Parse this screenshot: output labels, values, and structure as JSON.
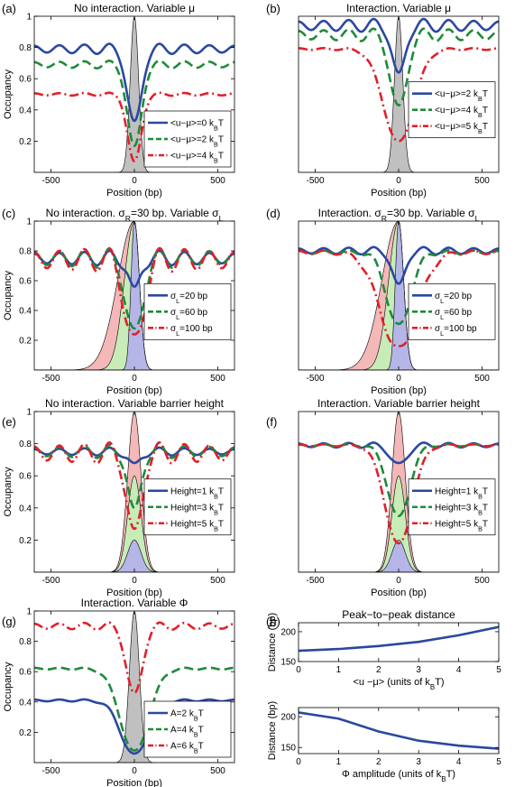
{
  "chart_data": [
    {
      "panel": "(a)",
      "type": "line",
      "title": "No interaction. Variable μ",
      "xlabel": "Position (bp)",
      "ylabel": "Occupancy",
      "xlim": [
        -600,
        600
      ],
      "ylim": [
        0,
        1
      ],
      "xticks": [
        "-500",
        "0",
        "500"
      ],
      "yticks": [
        "0.2",
        "0.4",
        "0.6",
        "0.8",
        "1"
      ],
      "legend_loc": "lower-right",
      "barrier": {
        "shape": "gaussian",
        "height": 1,
        "width": 25,
        "color": "#c0c0c0"
      },
      "series": [
        {
          "name": "<u−μ>=0 kBT",
          "label_parts": [
            "<u−μ>=0 k",
            "B",
            "T"
          ],
          "color": "#2b48a0",
          "dash": "",
          "baseline": 0.79,
          "amp": 0.04,
          "period": 150,
          "depth": 0.5,
          "dipw": 40
        },
        {
          "name": "<u−μ>=2 kBT",
          "label_parts": [
            "<u−μ>=2 k",
            "B",
            "T"
          ],
          "color": "#1f8a3a",
          "dash": "10,5",
          "baseline": 0.69,
          "amp": 0.03,
          "period": 150,
          "depth": 0.55,
          "dipw": 40
        },
        {
          "name": "<u−μ>=4 kBT",
          "label_parts": [
            "<u−μ>=4 k",
            "B",
            "T"
          ],
          "color": "#e0202a",
          "dash": "10,4,2,4",
          "baseline": 0.5,
          "amp": 0.012,
          "period": 150,
          "depth": 0.44,
          "dipw": 40
        }
      ]
    },
    {
      "panel": "(b)",
      "type": "line",
      "title": "Interaction. Variable μ",
      "xlabel": "Position (bp)",
      "ylabel": "",
      "xlim": [
        -600,
        600
      ],
      "ylim": [
        0,
        1
      ],
      "xticks": [
        "-500",
        "0",
        "500"
      ],
      "yticks": [],
      "legend_loc": "right",
      "barrier": {
        "shape": "gaussian",
        "height": 1,
        "width": 25,
        "color": "#c0c0c0"
      },
      "series": [
        {
          "name": "<u−μ>=2 kBT",
          "label_parts": [
            "<u−μ>=2 k",
            "B",
            "T"
          ],
          "color": "#2b48a0",
          "dash": "",
          "baseline": 0.94,
          "amp": 0.05,
          "period": 150,
          "depth": 0.35,
          "dipw": 35
        },
        {
          "name": "<u−μ>=4 kBT",
          "label_parts": [
            "<u−μ>=4 k",
            "B",
            "T"
          ],
          "color": "#1f8a3a",
          "dash": "10,5",
          "baseline": 0.88,
          "amp": 0.05,
          "period": 150,
          "depth": 0.5,
          "dipw": 45
        },
        {
          "name": "<u−μ>=5 kBT",
          "label_parts": [
            "<u−μ>=5 k",
            "B",
            "T"
          ],
          "color": "#e0202a",
          "dash": "10,4,2,4",
          "baseline": 0.79,
          "amp": 0.01,
          "period": 150,
          "depth": 0.6,
          "dipw": 90
        }
      ]
    },
    {
      "panel": "(c)",
      "type": "line",
      "title": "No interaction. σR=30 bp. Variable σL",
      "title_parts": [
        "No interaction. σ",
        "R",
        "=30 bp. Variable σ",
        "L"
      ],
      "xlabel": "Position (bp)",
      "ylabel": "Occupancy",
      "xlim": [
        -600,
        600
      ],
      "ylim": [
        0,
        1
      ],
      "xticks": [
        "-500",
        "0",
        "500"
      ],
      "yticks": [
        "0.2",
        "0.4",
        "0.6",
        "0.8",
        "1"
      ],
      "legend_loc": "right",
      "barrier": {
        "shape": "asym",
        "height": 1,
        "widthR": 30,
        "widthsL": [
          20,
          60,
          100
        ],
        "colors": [
          "#b5b5e8",
          "#c8ecb8",
          "#f4b8b8"
        ]
      },
      "series": [
        {
          "name": "σL=20 bp",
          "label_parts": [
            "σ",
            "L",
            "=20 bp"
          ],
          "color": "#2b48a0",
          "dash": "",
          "baseline": 0.75,
          "amp": 0.06,
          "period": 150,
          "depth": 0.25,
          "dipw": 30
        },
        {
          "name": "σL=60 bp",
          "label_parts": [
            "σ",
            "L",
            "=60 bp"
          ],
          "color": "#1f8a3a",
          "dash": "10,5",
          "baseline": 0.75,
          "amp": 0.08,
          "period": 150,
          "depth": 0.55,
          "dipw": 45
        },
        {
          "name": "σL=100 bp",
          "label_parts": [
            "σ",
            "L",
            "=100 bp"
          ],
          "color": "#e0202a",
          "dash": "10,4,2,4",
          "baseline": 0.74,
          "amp": 0.1,
          "period": 150,
          "depth": 0.6,
          "dipw": 50
        }
      ]
    },
    {
      "panel": "(d)",
      "type": "line",
      "title": "Interaction. σR=30 bp. Variable σL",
      "title_parts": [
        "Interaction. σ",
        "R",
        "=30 bp. Variable σ",
        "L"
      ],
      "xlabel": "Position (bp)",
      "ylabel": "",
      "xlim": [
        -600,
        600
      ],
      "ylim": [
        0,
        1
      ],
      "xticks": [
        "-500",
        "0",
        "500"
      ],
      "yticks": [],
      "legend_loc": "right",
      "barrier": {
        "shape": "asym",
        "height": 1,
        "widthR": 30,
        "widthsL": [
          20,
          60,
          100
        ],
        "colors": [
          "#b5b5e8",
          "#c8ecb8",
          "#f4b8b8"
        ]
      },
      "series": [
        {
          "name": "σL=20 bp",
          "label_parts": [
            "σ",
            "L",
            "=20 bp"
          ],
          "color": "#2b48a0",
          "dash": "",
          "baseline": 0.8,
          "amp": 0.03,
          "period": 150,
          "depth": 0.25,
          "dipw": 35
        },
        {
          "name": "σL=60 bp",
          "label_parts": [
            "σ",
            "L",
            "=60 bp"
          ],
          "color": "#1f8a3a",
          "dash": "10,5",
          "baseline": 0.79,
          "amp": 0.02,
          "period": 150,
          "depth": 0.5,
          "dipw": 70
        },
        {
          "name": "σL=100 bp",
          "label_parts": [
            "σ",
            "L",
            "=100 bp"
          ],
          "color": "#e0202a",
          "dash": "10,4,2,4",
          "baseline": 0.79,
          "amp": 0.02,
          "period": 150,
          "depth": 0.65,
          "dipw": 110
        }
      ]
    },
    {
      "panel": "(e)",
      "type": "line",
      "title": "No interaction. Variable barrier height",
      "xlabel": "Position (bp)",
      "ylabel": "Occupancy",
      "xlim": [
        -600,
        600
      ],
      "ylim": [
        0,
        1
      ],
      "xticks": [
        "-500",
        "0",
        "500"
      ],
      "yticks": [
        "0.2",
        "0.4",
        "0.6",
        "0.8",
        "1"
      ],
      "legend_loc": "right",
      "barrier": {
        "shape": "stack",
        "heights": [
          1,
          0.6,
          0.2
        ],
        "width": 40,
        "colors": [
          "#f4b8b8",
          "#c8ecb8",
          "#b5b5e8"
        ]
      },
      "series": [
        {
          "name": "Height=1 kBT",
          "label_parts": [
            "Height=1 k",
            "B",
            "T"
          ],
          "color": "#2b48a0",
          "dash": "",
          "baseline": 0.75,
          "amp": 0.03,
          "period": 150,
          "depth": 0.1,
          "dipw": 30
        },
        {
          "name": "Height=3 kBT",
          "label_parts": [
            "Height=3 k",
            "B",
            "T"
          ],
          "color": "#1f8a3a",
          "dash": "10,5",
          "baseline": 0.75,
          "amp": 0.05,
          "period": 150,
          "depth": 0.4,
          "dipw": 35
        },
        {
          "name": "Height=5 kBT",
          "label_parts": [
            "Height=5 k",
            "B",
            "T"
          ],
          "color": "#e0202a",
          "dash": "10,4,2,4",
          "baseline": 0.74,
          "amp": 0.08,
          "period": 150,
          "depth": 0.55,
          "dipw": 40
        }
      ]
    },
    {
      "panel": "(f)",
      "type": "line",
      "title": "Interaction. Variable barrier height",
      "xlabel": "Position (bp)",
      "ylabel": "",
      "xlim": [
        -600,
        600
      ],
      "ylim": [
        0,
        1
      ],
      "xticks": [
        "-500",
        "0",
        "500"
      ],
      "yticks": [],
      "legend_loc": "right",
      "barrier": {
        "shape": "stack",
        "heights": [
          1,
          0.6,
          0.2
        ],
        "width": 40,
        "colors": [
          "#f4b8b8",
          "#c8ecb8",
          "#b5b5e8"
        ]
      },
      "series": [
        {
          "name": "Height=1 kBT",
          "label_parts": [
            "Height=1 k",
            "B",
            "T"
          ],
          "color": "#2b48a0",
          "dash": "",
          "baseline": 0.79,
          "amp": 0.02,
          "period": 150,
          "depth": 0.13,
          "dipw": 45
        },
        {
          "name": "Height=3 kBT",
          "label_parts": [
            "Height=3 k",
            "B",
            "T"
          ],
          "color": "#1f8a3a",
          "dash": "10,5",
          "baseline": 0.79,
          "amp": 0.01,
          "period": 150,
          "depth": 0.45,
          "dipw": 65
        },
        {
          "name": "Height=5 kBT",
          "label_parts": [
            "Height=5 k",
            "B",
            "T"
          ],
          "color": "#e0202a",
          "dash": "10,4,2,4",
          "baseline": 0.79,
          "amp": 0.01,
          "period": 150,
          "depth": 0.62,
          "dipw": 80
        }
      ]
    },
    {
      "panel": "(g)",
      "type": "line",
      "title": "Interaction. Variable Φ",
      "xlabel": "Position (bp)",
      "ylabel": "Occupancy",
      "xlim": [
        -600,
        600
      ],
      "ylim": [
        0,
        1
      ],
      "xticks": [
        "-500",
        "0",
        "500"
      ],
      "yticks": [
        "0.2",
        "0.4",
        "0.6",
        "0.8",
        "1"
      ],
      "legend_loc": "lower-right",
      "barrier": {
        "shape": "gaussian",
        "height": 1,
        "width": 30,
        "color": "#c0c0c0"
      },
      "series": [
        {
          "name": "A=2 kBT",
          "label_parts": [
            "A=2 k",
            "B",
            "T"
          ],
          "color": "#2b48a0",
          "dash": "",
          "baseline": 0.41,
          "amp": 0.01,
          "period": 150,
          "depth": 0.36,
          "dipw": 80
        },
        {
          "name": "A=4 kBT",
          "label_parts": [
            "A=4 k",
            "B",
            "T"
          ],
          "color": "#1f8a3a",
          "dash": "10,5",
          "baseline": 0.62,
          "amp": 0.01,
          "period": 150,
          "depth": 0.55,
          "dipw": 85
        },
        {
          "name": "A=6 kBT",
          "label_parts": [
            "A=6 k",
            "B",
            "T"
          ],
          "color": "#e0202a",
          "dash": "10,4,2,4",
          "baseline": 0.9,
          "amp": 0.03,
          "period": 150,
          "depth": 0.47,
          "dipw": 45
        }
      ]
    },
    {
      "panel": "(h)",
      "type": "line",
      "title": "Peak−to−peak distance",
      "xlabel": "<u −μ> (units of kBT)",
      "xlabel_parts": [
        "<u −μ> (units of k",
        "B",
        "T)"
      ],
      "ylabel": "Distance (bp)",
      "xlim": [
        0,
        5
      ],
      "ylim": [
        150,
        215
      ],
      "xticks": [
        "0",
        "1",
        "2",
        "3",
        "4",
        "5"
      ],
      "yticks": [
        "150",
        "200"
      ],
      "series": [
        {
          "name": "",
          "color": "#2b48a0",
          "x": [
            0,
            1,
            2,
            3,
            4,
            5
          ],
          "y": [
            168,
            171,
            176,
            183,
            194,
            208
          ]
        }
      ]
    },
    {
      "panel": "(h-lower)",
      "type": "line",
      "title": "",
      "xlabel": "Φ amplitude (units of kBT)",
      "xlabel_parts": [
        "Φ amplitude (units of k",
        "B",
        "T)"
      ],
      "ylabel": "Distance (bp)",
      "xlim": [
        0,
        5
      ],
      "ylim": [
        140,
        215
      ],
      "xticks": [
        "0",
        "1",
        "2",
        "3",
        "4",
        "5"
      ],
      "yticks": [
        "150",
        "200"
      ],
      "series": [
        {
          "name": "",
          "color": "#2b48a0",
          "x": [
            0,
            1,
            2,
            3,
            4,
            5
          ],
          "y": [
            207,
            197,
            176,
            161,
            153,
            148
          ]
        }
      ]
    }
  ]
}
